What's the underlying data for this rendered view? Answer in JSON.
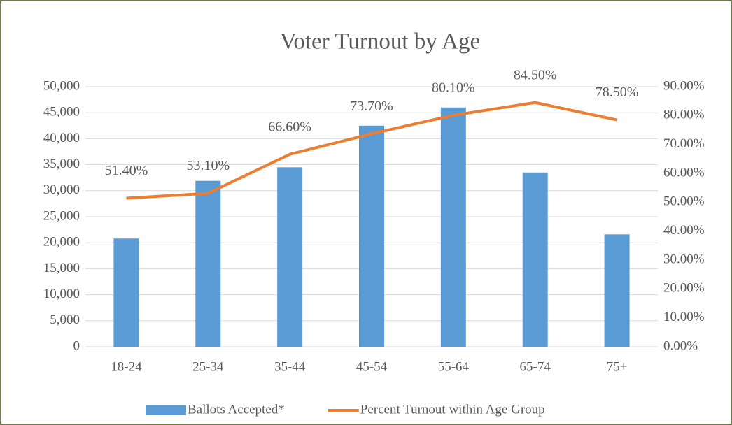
{
  "chart_data": {
    "type": "bar-line",
    "title": "Voter Turnout by Age",
    "categories": [
      "18-24",
      "25-34",
      "35-44",
      "45-54",
      "55-64",
      "65-74",
      "75+"
    ],
    "series": [
      {
        "name": "Ballots Accepted*",
        "color": "#5b9bd5",
        "type": "bar",
        "values": [
          20800,
          31900,
          34500,
          42500,
          46000,
          33500,
          21600
        ]
      },
      {
        "name": "Percent Turnout within Age Group",
        "color": "#ed7d31",
        "type": "line",
        "axis": "y2",
        "values": [
          51.4,
          53.1,
          66.6,
          73.7,
          80.1,
          84.5,
          78.5
        ],
        "value_labels": [
          "51.40%",
          "53.10%",
          "66.60%",
          "73.70%",
          "80.10%",
          "84.50%",
          "78.50%"
        ]
      }
    ],
    "ylim": [
      0,
      50000
    ],
    "yticks": [
      0,
      {
        "value": 5000,
        "label": "5,000"
      },
      {
        "value": 10000,
        "label": "10,000"
      },
      {
        "value": 15000,
        "label": "15,000"
      },
      {
        "value": 20000,
        "label": "20,000"
      },
      {
        "value": 25000,
        "label": "25,000"
      },
      {
        "value": 30000,
        "label": "30,000"
      },
      {
        "value": 35000,
        "label": "35,000"
      },
      {
        "value": 40000,
        "label": "40,000"
      },
      {
        "value": 45000,
        "label": "45,000"
      },
      {
        "value": 50000,
        "label": "50,000"
      }
    ],
    "y2lim": [
      0,
      90
    ],
    "y2ticks": [
      {
        "value": 0,
        "label": "0.00%"
      },
      {
        "value": 10,
        "label": "10.00%"
      },
      {
        "value": 20,
        "label": "20.00%"
      },
      {
        "value": 30,
        "label": "30.00%"
      },
      {
        "value": 40,
        "label": "40.00%"
      },
      {
        "value": 50,
        "label": "50.00%"
      },
      {
        "value": 60,
        "label": "60.00%"
      },
      {
        "value": 70,
        "label": "70.00%"
      },
      {
        "value": 80,
        "label": "80.00%"
      },
      {
        "value": 90,
        "label": "90.00%"
      }
    ],
    "grid": true,
    "legend": "bottom"
  }
}
